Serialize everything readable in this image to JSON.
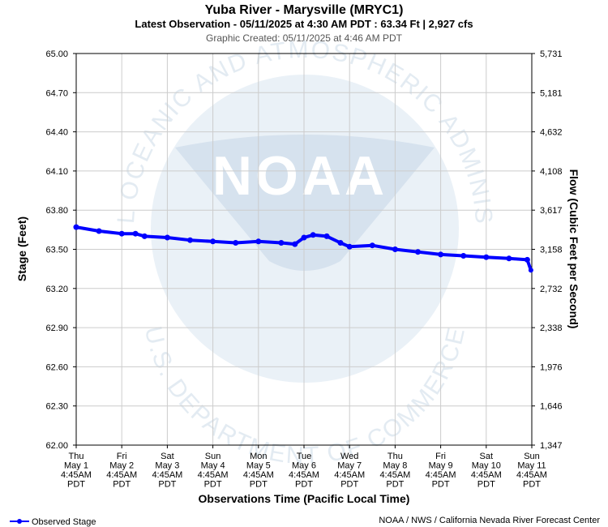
{
  "header": {
    "title": "Yuba River - Marysville (MRYC1)",
    "subtitle": "Latest Observation - 05/11/2025 at 4:30 AM PDT : 63.34 Ft | 2,927 cfs",
    "created": "Graphic Created: 05/11/2025 at 4:46 AM PDT"
  },
  "watermark": {
    "logo_text": "NOAA",
    "ring_top": "NATIONAL OCEANIC AND ATMOSPHERIC ADMINISTRATION",
    "ring_bottom": "U.S. DEPARTMENT OF COMMERCE"
  },
  "legend": {
    "label": "Observed Stage"
  },
  "footer": {
    "credit": "NOAA / NWS / California Nevada River Forecast Center"
  },
  "colors": {
    "series": "#0000ff",
    "grid": "#cccccc",
    "watermark": "#e9f0f6"
  },
  "chart_data": {
    "type": "line",
    "xlabel": "Observations Time (Pacific Local Time)",
    "ylabel": "Stage (Feet)",
    "y2label": "Flow (Cubic Feet per Second)",
    "ylim": [
      62.0,
      65.0
    ],
    "yticks": [
      "65.00",
      "64.70",
      "64.40",
      "64.10",
      "63.80",
      "63.50",
      "63.20",
      "62.90",
      "62.60",
      "62.30",
      "62.00"
    ],
    "y2ticks": [
      "5,731",
      "5,181",
      "4,632",
      "4,108",
      "3,617",
      "3,158",
      "2,732",
      "2,338",
      "1,976",
      "1,646",
      "1,347"
    ],
    "xlim_days": [
      0,
      10
    ],
    "xticks": [
      [
        "Thu",
        "May 1",
        "4:45AM",
        "PDT"
      ],
      [
        "Fri",
        "May 2",
        "4:45AM",
        "PDT"
      ],
      [
        "Sat",
        "May 3",
        "4:45AM",
        "PDT"
      ],
      [
        "Sun",
        "May 4",
        "4:45AM",
        "PDT"
      ],
      [
        "Mon",
        "May 5",
        "4:45AM",
        "PDT"
      ],
      [
        "Tue",
        "May 6",
        "4:45AM",
        "PDT"
      ],
      [
        "Wed",
        "May 7",
        "4:45AM",
        "PDT"
      ],
      [
        "Thu",
        "May 8",
        "4:45AM",
        "PDT"
      ],
      [
        "Fri",
        "May 9",
        "4:45AM",
        "PDT"
      ],
      [
        "Sat",
        "May 10",
        "4:45AM",
        "PDT"
      ],
      [
        "Sun",
        "May 11",
        "4:45AM",
        "PDT"
      ]
    ],
    "grid": true,
    "legend_position": "bottom-left",
    "series": [
      {
        "name": "Observed Stage",
        "x": [
          0.0,
          0.5,
          1.0,
          1.3,
          1.5,
          2.0,
          2.5,
          3.0,
          3.5,
          4.0,
          4.5,
          4.8,
          5.0,
          5.2,
          5.5,
          5.8,
          6.0,
          6.5,
          7.0,
          7.5,
          8.0,
          8.5,
          9.0,
          9.5,
          9.9
        ],
        "y": [
          63.67,
          63.64,
          63.62,
          63.62,
          63.6,
          63.59,
          63.57,
          63.56,
          63.55,
          63.56,
          63.55,
          63.54,
          63.59,
          63.61,
          63.6,
          63.55,
          63.52,
          63.53,
          63.5,
          63.48,
          63.46,
          63.45,
          63.44,
          63.43,
          63.42
        ]
      }
    ],
    "latest": {
      "x": 9.98,
      "y": 63.34
    }
  }
}
